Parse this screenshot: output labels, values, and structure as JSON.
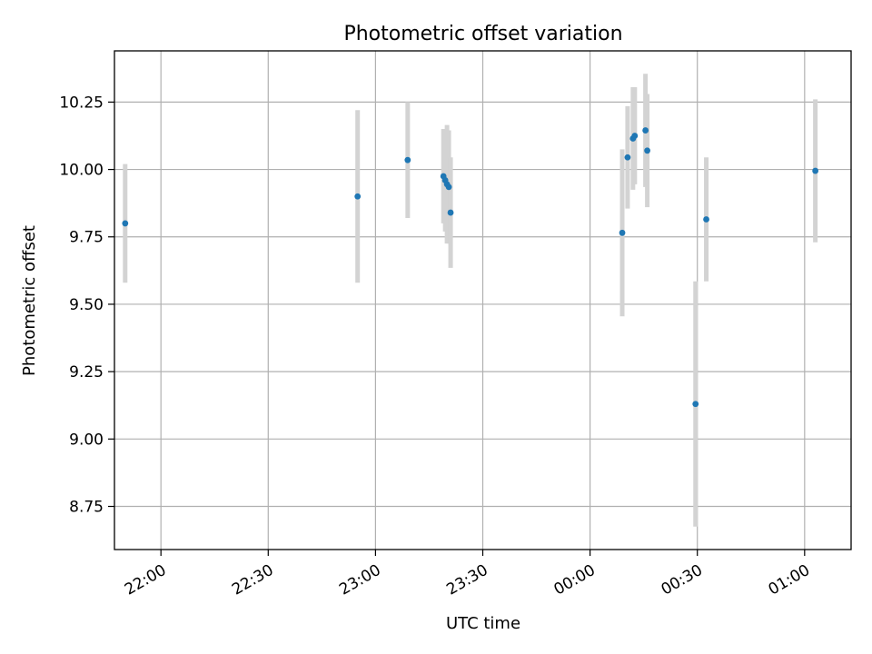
{
  "chart_data": {
    "type": "scatter",
    "title": "Photometric offset variation",
    "xlabel": "UTC time",
    "ylabel": "Photometric offset",
    "grid": true,
    "xlim": [
      "21:47",
      "01:13"
    ],
    "ylim": [
      8.59,
      10.44
    ],
    "x_ticks": [
      "22:00",
      "22:30",
      "23:00",
      "23:30",
      "00:00",
      "00:30",
      "01:00"
    ],
    "y_ticks": [
      8.75,
      9.0,
      9.25,
      9.5,
      9.75,
      10.0,
      10.25
    ],
    "y_tick_labels": [
      "8.75",
      "9.00",
      "9.25",
      "9.50",
      "9.75",
      "10.00",
      "10.25"
    ],
    "colors": {
      "point": "#1f77b4",
      "errorbar": "#d3d3d3",
      "grid": "#b0b0b0"
    },
    "series": [
      {
        "points": [
          {
            "x": "21:50",
            "y": 9.8,
            "yerr": 0.22
          },
          {
            "x": "22:55",
            "y": 9.9,
            "yerr": 0.32
          },
          {
            "x": "23:09",
            "y": 10.035,
            "yerr": 0.215
          },
          {
            "x": "23:19",
            "y": 9.975,
            "yerr": 0.175
          },
          {
            "x": "23:19.5",
            "y": 9.96,
            "yerr": 0.19
          },
          {
            "x": "23:20",
            "y": 9.945,
            "yerr": 0.22
          },
          {
            "x": "23:20.5",
            "y": 9.935,
            "yerr": 0.21
          },
          {
            "x": "23:21",
            "y": 9.84,
            "yerr": 0.205
          },
          {
            "x": "00:09",
            "y": 9.765,
            "yerr": 0.31
          },
          {
            "x": "00:10.5",
            "y": 10.045,
            "yerr": 0.19
          },
          {
            "x": "00:12",
            "y": 10.115,
            "yerr": 0.19
          },
          {
            "x": "00:12.5",
            "y": 10.125,
            "yerr": 0.18
          },
          {
            "x": "00:15.5",
            "y": 10.145,
            "yerr": 0.21
          },
          {
            "x": "00:16",
            "y": 10.07,
            "yerr": 0.21
          },
          {
            "x": "00:29.5",
            "y": 9.13,
            "yerr": 0.455
          },
          {
            "x": "00:32.5",
            "y": 9.815,
            "yerr": 0.23
          },
          {
            "x": "01:03",
            "y": 9.995,
            "yerr": 0.265
          }
        ]
      }
    ]
  }
}
